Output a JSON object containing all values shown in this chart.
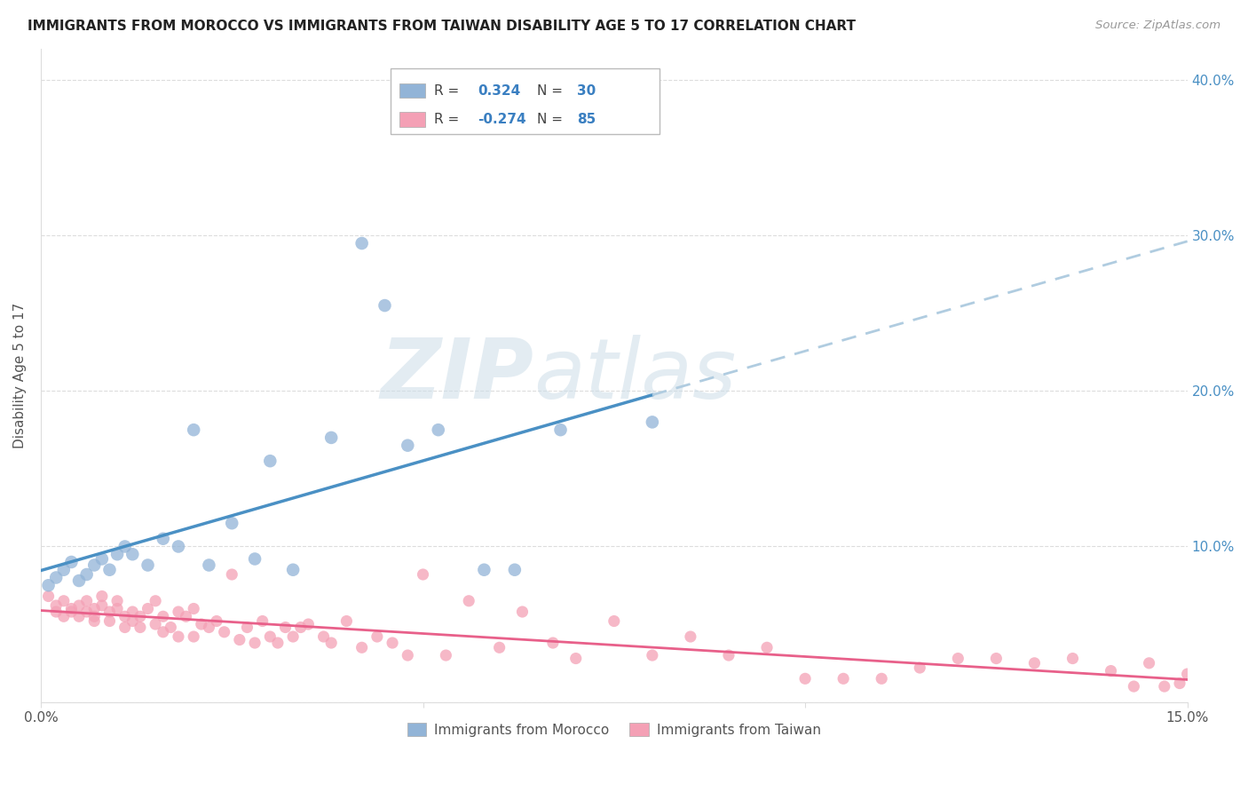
{
  "title": "IMMIGRANTS FROM MOROCCO VS IMMIGRANTS FROM TAIWAN DISABILITY AGE 5 TO 17 CORRELATION CHART",
  "source": "Source: ZipAtlas.com",
  "ylabel": "Disability Age 5 to 17",
  "legend_label1": "Immigrants from Morocco",
  "legend_label2": "Immigrants from Taiwan",
  "r1": 0.324,
  "n1": 30,
  "r2": -0.274,
  "n2": 85,
  "xmin": 0.0,
  "xmax": 0.15,
  "ymin": 0.0,
  "ymax": 0.42,
  "color_blue": "#92b4d7",
  "color_pink": "#f4a0b5",
  "color_blue_line": "#4a90c4",
  "color_pink_line": "#e8608a",
  "color_dashed": "#b0cce0",
  "yticks": [
    0.0,
    0.1,
    0.2,
    0.3,
    0.4
  ],
  "ytick_labels_right": [
    "",
    "10.0%",
    "20.0%",
    "30.0%",
    "40.0%"
  ],
  "xticks": [
    0.0,
    0.05,
    0.1,
    0.15
  ],
  "xtick_labels": [
    "0.0%",
    "",
    "",
    "15.0%"
  ],
  "morocco_x": [
    0.001,
    0.002,
    0.003,
    0.004,
    0.005,
    0.006,
    0.007,
    0.008,
    0.009,
    0.01,
    0.011,
    0.012,
    0.014,
    0.016,
    0.018,
    0.02,
    0.022,
    0.025,
    0.028,
    0.03,
    0.033,
    0.038,
    0.042,
    0.045,
    0.048,
    0.052,
    0.058,
    0.062,
    0.068,
    0.08
  ],
  "morocco_y": [
    0.075,
    0.08,
    0.085,
    0.09,
    0.078,
    0.082,
    0.088,
    0.092,
    0.085,
    0.095,
    0.1,
    0.095,
    0.088,
    0.105,
    0.1,
    0.175,
    0.088,
    0.115,
    0.092,
    0.155,
    0.085,
    0.17,
    0.295,
    0.255,
    0.165,
    0.175,
    0.085,
    0.085,
    0.175,
    0.18
  ],
  "taiwan_x": [
    0.001,
    0.002,
    0.002,
    0.003,
    0.003,
    0.004,
    0.004,
    0.005,
    0.005,
    0.006,
    0.006,
    0.007,
    0.007,
    0.007,
    0.008,
    0.008,
    0.009,
    0.009,
    0.01,
    0.01,
    0.011,
    0.011,
    0.012,
    0.012,
    0.013,
    0.013,
    0.014,
    0.015,
    0.015,
    0.016,
    0.016,
    0.017,
    0.018,
    0.018,
    0.019,
    0.02,
    0.02,
    0.021,
    0.022,
    0.023,
    0.024,
    0.025,
    0.026,
    0.027,
    0.028,
    0.029,
    0.03,
    0.031,
    0.032,
    0.033,
    0.034,
    0.035,
    0.037,
    0.038,
    0.04,
    0.042,
    0.044,
    0.046,
    0.048,
    0.05,
    0.053,
    0.056,
    0.06,
    0.063,
    0.067,
    0.07,
    0.075,
    0.08,
    0.085,
    0.09,
    0.095,
    0.1,
    0.105,
    0.11,
    0.115,
    0.12,
    0.125,
    0.13,
    0.135,
    0.14,
    0.143,
    0.145,
    0.147,
    0.149,
    0.15
  ],
  "taiwan_y": [
    0.068,
    0.062,
    0.058,
    0.055,
    0.065,
    0.06,
    0.058,
    0.062,
    0.055,
    0.058,
    0.065,
    0.052,
    0.06,
    0.055,
    0.062,
    0.068,
    0.058,
    0.052,
    0.06,
    0.065,
    0.055,
    0.048,
    0.058,
    0.052,
    0.048,
    0.055,
    0.06,
    0.05,
    0.065,
    0.045,
    0.055,
    0.048,
    0.058,
    0.042,
    0.055,
    0.042,
    0.06,
    0.05,
    0.048,
    0.052,
    0.045,
    0.082,
    0.04,
    0.048,
    0.038,
    0.052,
    0.042,
    0.038,
    0.048,
    0.042,
    0.048,
    0.05,
    0.042,
    0.038,
    0.052,
    0.035,
    0.042,
    0.038,
    0.03,
    0.082,
    0.03,
    0.065,
    0.035,
    0.058,
    0.038,
    0.028,
    0.052,
    0.03,
    0.042,
    0.03,
    0.035,
    0.015,
    0.015,
    0.015,
    0.022,
    0.028,
    0.028,
    0.025,
    0.028,
    0.02,
    0.01,
    0.025,
    0.01,
    0.012,
    0.018
  ],
  "watermark_zip": "ZIP",
  "watermark_atlas": "atlas",
  "background_color": "#ffffff",
  "grid_color": "#dddddd",
  "title_color": "#222222",
  "source_color": "#999999",
  "ylabel_color": "#555555",
  "tick_color": "#555555",
  "right_tick_color": "#4a90c4"
}
